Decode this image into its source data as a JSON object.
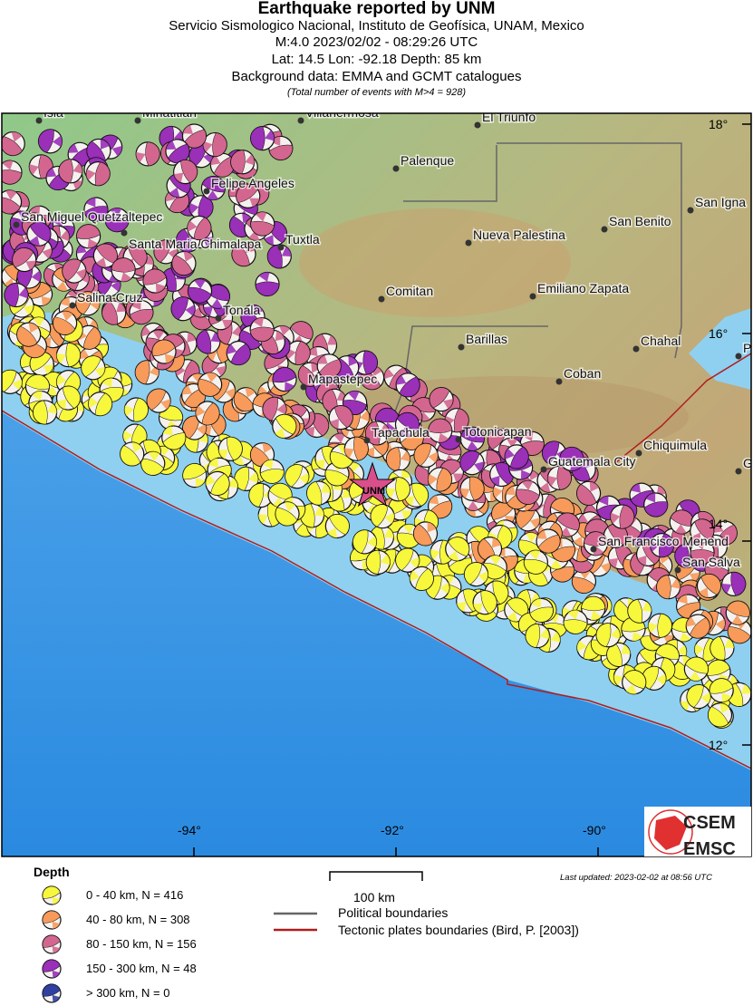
{
  "header": {
    "title": "Earthquake reported by UNM",
    "agency": "Servicio Sismologico Nacional, Instituto de Geofísica, UNAM, Mexico",
    "event": "M:4.0 2023/02/02 - 08:29:26 UTC",
    "location": "Lat: 14.5 Lon: -92.18 Depth: 85 km",
    "background": "Background data: EMMA and GCMT catalogues",
    "total": "(Total number of events with M>4 = 928)"
  },
  "map": {
    "epicenter_label": "UNM",
    "epicenter": {
      "lat": 14.5,
      "lon": -92.18
    },
    "star_color": "#d94f8a",
    "cities": [
      "Isla",
      "Minatitlan",
      "Villahermosa",
      "El Triunfo",
      "Palenque",
      "Felipe Angeles",
      "San Miguel Quetzaltepec",
      "Santa Maria Chimalapa",
      "Tuxtla",
      "Nueva Palestina",
      "San Benito",
      "San Igna",
      "Salina Cruz",
      "Comitan",
      "Emiliano Zapata",
      "Tonala",
      "Barillas",
      "Chahal",
      "P",
      "Mapastepec",
      "Coban",
      "Tapachula",
      "Totonicapan",
      "Chiquimula",
      "Guatemala City",
      "G",
      "San Francisco Menend",
      "San Salva"
    ],
    "lat_labels": [
      "18°",
      "16°",
      "14°",
      "12°"
    ],
    "lon_labels": [
      "-94°",
      "-92°",
      "-90°"
    ],
    "logo": "CSEM EMSC"
  },
  "legend": {
    "title": "Depth",
    "items": [
      {
        "label": "0 - 40 km, N = 416",
        "color": "#f7f73c"
      },
      {
        "label": "40 - 80 km, N = 308",
        "color": "#f79a5a"
      },
      {
        "label": "80 - 150 km, N = 156",
        "color": "#d3668f"
      },
      {
        "label": "150 - 300 km, N = 48",
        "color": "#9a2fb8"
      },
      {
        "label": "> 300 km, N = 0",
        "color": "#3040a0"
      }
    ],
    "scale": "100 km",
    "political": "Political boundaries",
    "political_color": "#666666",
    "tectonic": "Tectonic plates boundaries (Bird, P. [2003])",
    "tectonic_color": "#b01c1c",
    "updated": "Last updated: 2023-02-02 at 08:56 UTC"
  }
}
